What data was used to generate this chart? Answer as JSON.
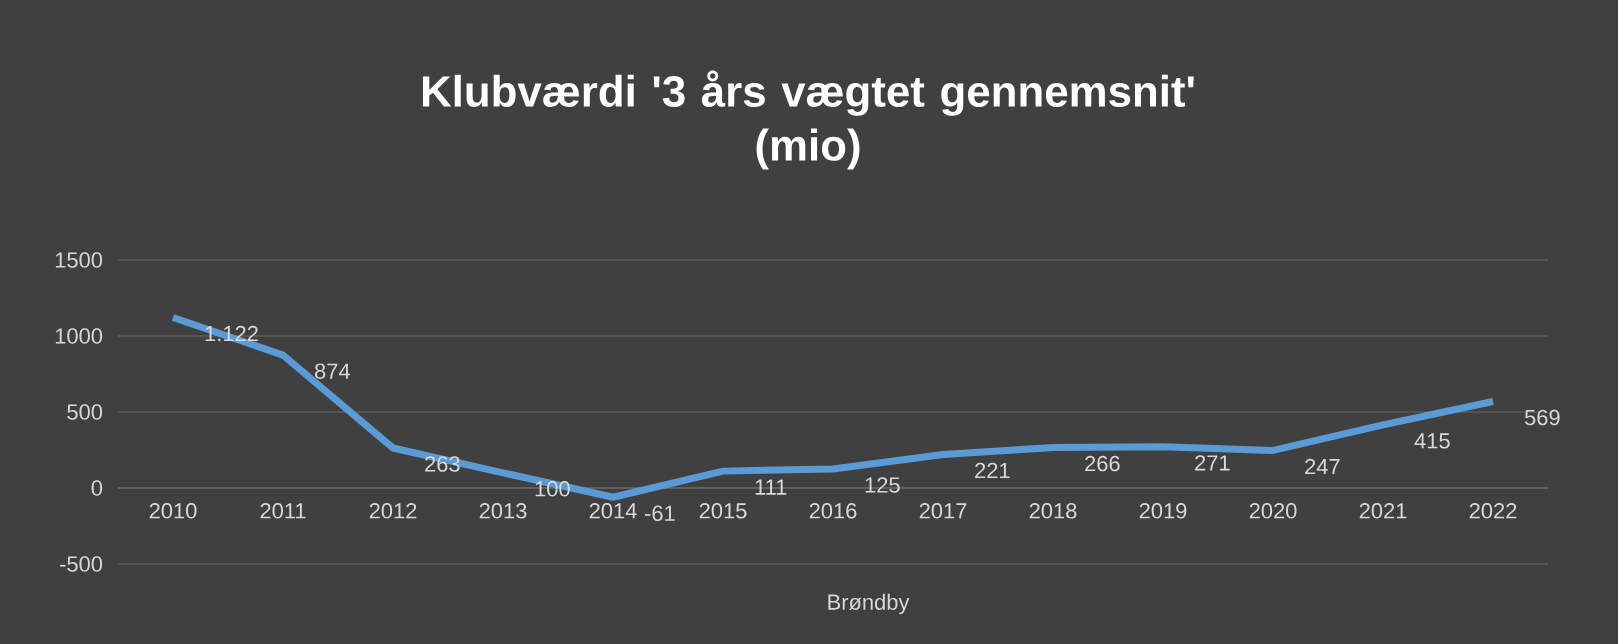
{
  "chart_data": {
    "type": "line",
    "title": "Klubværdi '3 års vægtet gennemsnit'\n(mio)",
    "xlabel": "Brøndby",
    "categories": [
      "2010",
      "2011",
      "2012",
      "2013",
      "2014",
      "2015",
      "2016",
      "2017",
      "2018",
      "2019",
      "2020",
      "2021",
      "2022"
    ],
    "series": [
      {
        "color": "#5b9bd5",
        "values": [
          1122,
          874,
          263,
          100,
          -61,
          111,
          125,
          221,
          266,
          271,
          247,
          415,
          569
        ],
        "value_labels": [
          "1.122",
          "874",
          "263",
          "100",
          "-61",
          "111",
          "125",
          "221",
          "266",
          "271",
          "247",
          "415",
          "569"
        ]
      }
    ],
    "ylim": [
      -500,
      1500
    ],
    "yticks": [
      -500,
      0,
      500,
      1000,
      1500
    ],
    "grid": "y",
    "marker": "none",
    "line_style": "solid"
  }
}
